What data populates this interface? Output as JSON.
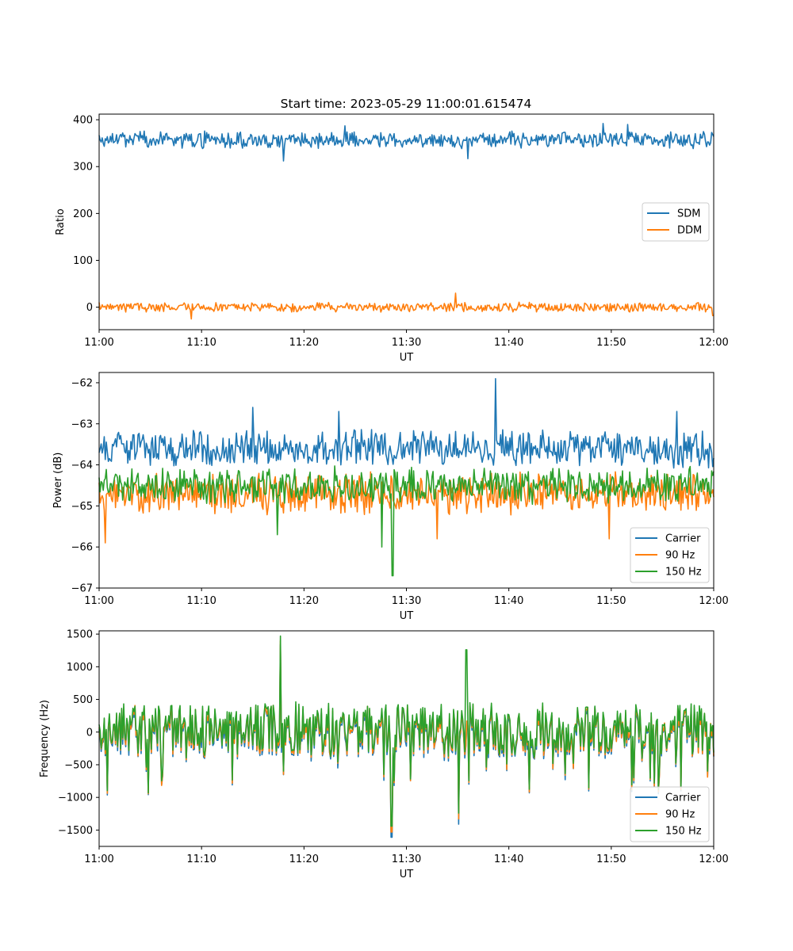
{
  "figure": {
    "title": "Start time: 2023-05-29 11:00:01.615474"
  },
  "chart_data": [
    {
      "type": "line",
      "xlabel": "UT",
      "ylabel": "Ratio",
      "xlim": [
        "11:00",
        "12:00"
      ],
      "ylim": [
        -48,
        412
      ],
      "x_ticks": [
        "11:00",
        "11:10",
        "11:20",
        "11:30",
        "11:40",
        "11:50",
        "12:00"
      ],
      "y_ticks": [
        0,
        100,
        200,
        300,
        400
      ],
      "legend": "center-right",
      "series": [
        {
          "name": "SDM",
          "color": "#1f77b4",
          "mean": 357,
          "noise": 14,
          "spikes": [
            [
              0.3,
              -45
            ],
            [
              0.4,
              30
            ],
            [
              0.6,
              -40
            ],
            [
              0.82,
              35
            ],
            [
              0.86,
              33
            ]
          ]
        },
        {
          "name": "DDM",
          "color": "#ff7f0e",
          "mean": 0,
          "noise": 8,
          "spikes": [
            [
              0.58,
              30
            ],
            [
              0.15,
              -25
            ],
            [
              0.999,
              -18
            ]
          ]
        }
      ]
    },
    {
      "type": "line",
      "xlabel": "UT",
      "ylabel": "Power (dB)",
      "xlim": [
        "11:00",
        "12:00"
      ],
      "ylim": [
        -67,
        -61.75
      ],
      "x_ticks": [
        "11:00",
        "11:10",
        "11:20",
        "11:30",
        "11:40",
        "11:50",
        "12:00"
      ],
      "y_ticks": [
        -62,
        -63,
        -64,
        -65,
        -66,
        -67
      ],
      "legend": "lower-right",
      "series": [
        {
          "name": "Carrier",
          "color": "#1f77b4",
          "mean": -63.6,
          "noise": 0.35,
          "spikes": [
            [
              0.645,
              1.7
            ],
            [
              0.25,
              1.0
            ],
            [
              0.39,
              0.9
            ],
            [
              0.94,
              0.9
            ]
          ]
        },
        {
          "name": "90 Hz",
          "color": "#ff7f0e",
          "mean": -64.7,
          "noise": 0.4,
          "spikes": [
            [
              0.01,
              -1.2
            ],
            [
              0.55,
              -1.1
            ],
            [
              0.83,
              -1.1
            ]
          ]
        },
        {
          "name": "150 Hz",
          "color": "#2ca02c",
          "mean": -64.5,
          "noise": 0.35,
          "spikes": [
            [
              0.477,
              -2.2
            ],
            [
              0.46,
              -1.5
            ],
            [
              0.29,
              -1.2
            ]
          ]
        }
      ]
    },
    {
      "type": "line",
      "xlabel": "UT",
      "ylabel": "Frequency (Hz)",
      "xlim": [
        "11:00",
        "12:00"
      ],
      "ylim": [
        -1750,
        1550
      ],
      "x_ticks": [
        "11:00",
        "11:10",
        "11:20",
        "11:30",
        "11:40",
        "11:50",
        "12:00"
      ],
      "y_ticks": [
        1500,
        1000,
        500,
        0,
        -500,
        -1000,
        -1500
      ],
      "legend": "lower-right",
      "series": [
        {
          "name": "Carrier",
          "color": "#1f77b4",
          "mean": -10,
          "noise": 380,
          "spikes": [
            [
              0.476,
              -1600
            ],
            [
              0.585,
              -1400
            ],
            [
              0.295,
              1350
            ]
          ]
        },
        {
          "name": "90 Hz",
          "color": "#ff7f0e",
          "mean": 20,
          "noise": 380,
          "spikes": [
            [
              0.476,
              -1550
            ],
            [
              0.585,
              -1350
            ],
            [
              0.295,
              1380
            ]
          ]
        },
        {
          "name": "150 Hz",
          "color": "#2ca02c",
          "mean": 60,
          "noise": 380,
          "spikes": [
            [
              0.476,
              -1500
            ],
            [
              0.585,
              -1300
            ],
            [
              0.295,
              1410
            ],
            [
              0.597,
              1200
            ]
          ]
        }
      ]
    }
  ]
}
